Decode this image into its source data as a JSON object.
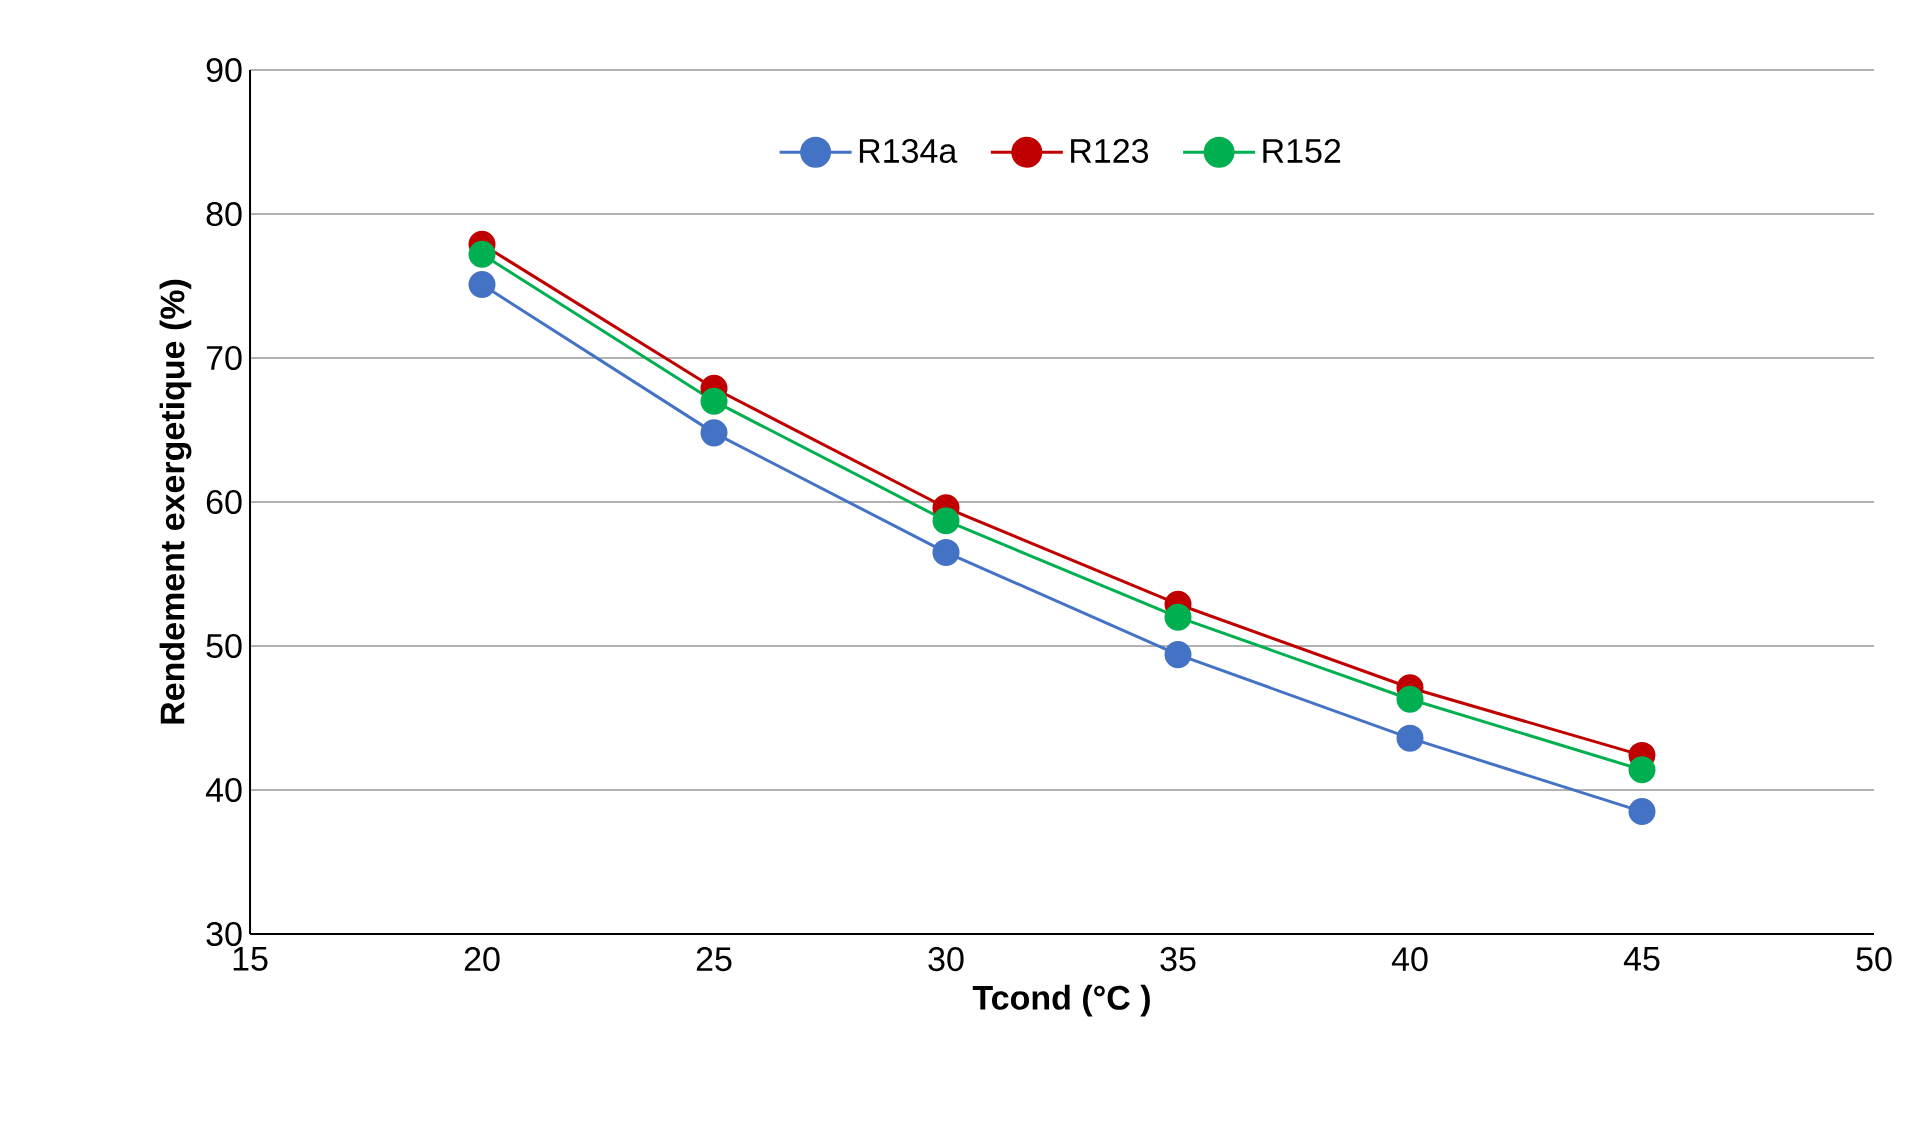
{
  "chart_data": {
    "type": "line",
    "xlabel": "Tcond (°C )",
    "ylabel": "Rendement exergetique (%)",
    "x": [
      20,
      25,
      30,
      35,
      40,
      45
    ],
    "series": [
      {
        "name": "R134a",
        "color": "#4472c4",
        "values": [
          75.1,
          64.8,
          56.5,
          49.4,
          43.6,
          38.5
        ]
      },
      {
        "name": "R123",
        "color": "#c00000",
        "values": [
          77.9,
          67.9,
          59.6,
          52.9,
          47.1,
          42.4
        ]
      },
      {
        "name": "R152",
        "color": "#00b050",
        "values": [
          77.2,
          67.0,
          58.7,
          52.0,
          46.3,
          41.4
        ]
      }
    ],
    "xlim": [
      15,
      50
    ],
    "ylim": [
      30,
      90
    ],
    "xticks": [
      15,
      20,
      25,
      30,
      35,
      40,
      45,
      50
    ],
    "yticks": [
      30,
      40,
      50,
      60,
      70,
      80,
      90
    ],
    "grid": "y",
    "legend": "top",
    "marker": "circle",
    "line_style": "solid"
  }
}
